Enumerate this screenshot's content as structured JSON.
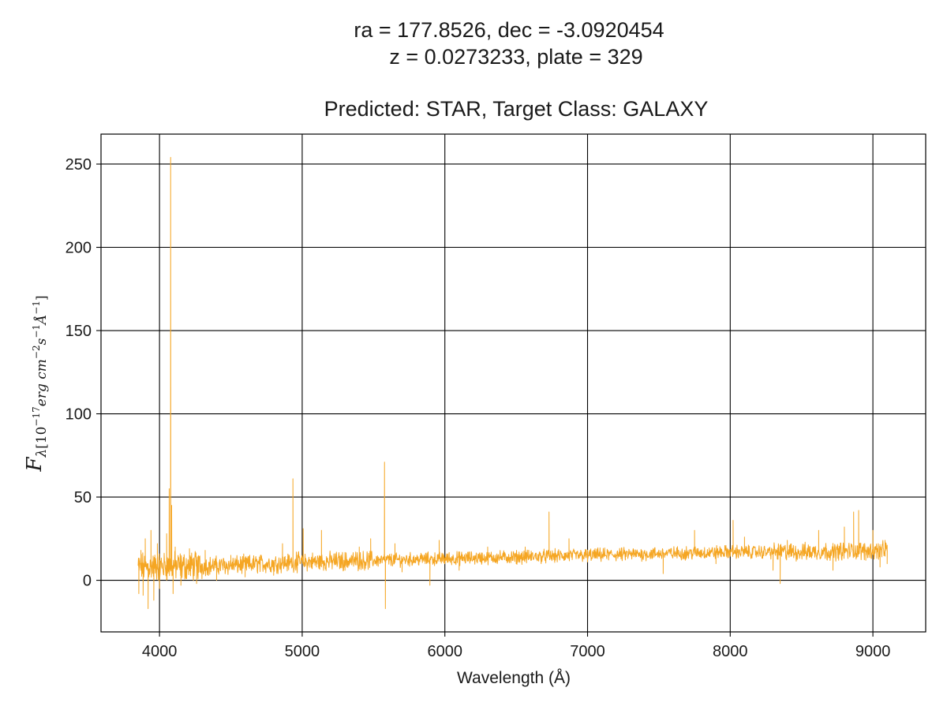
{
  "chart_data": {
    "type": "line",
    "title_lines": [
      "ra = 177.8526, dec = -3.0920454",
      "z = 0.0273233, plate = 329"
    ],
    "subtitle": "Predicted: STAR, Target Class: GALAXY",
    "xlabel": "Wavelength (Å)",
    "ylabel": {
      "symbol": "F",
      "sub_lambda": "λ",
      "bracket_open": "[10",
      "exp_a": "−17",
      "unit_a": "erg cm",
      "exp_b": "−2",
      "unit_b": "s",
      "exp_c": "−1",
      "unit_c": "Å",
      "exp_d": "−1",
      "bracket_close": "]"
    },
    "xlim": [
      3590,
      9370
    ],
    "ylim": [
      -31,
      268
    ],
    "xticks": [
      4000,
      5000,
      6000,
      7000,
      8000,
      9000
    ],
    "yticks": [
      0,
      50,
      100,
      150,
      200,
      250
    ],
    "grid": true,
    "line_color": "#f5a623",
    "axis_color": "#000000",
    "series": [
      {
        "x_start": 3850,
        "x_end": 9100,
        "continuum": [
          [
            3850,
            8
          ],
          [
            4500,
            9
          ],
          [
            5000,
            11
          ],
          [
            5500,
            12
          ],
          [
            6000,
            13
          ],
          [
            6500,
            14
          ],
          [
            7000,
            15
          ],
          [
            7500,
            16
          ],
          [
            8000,
            17
          ],
          [
            8500,
            17
          ],
          [
            9100,
            18
          ]
        ],
        "peaks": [
          [
            3855,
            -8
          ],
          [
            3870,
            18
          ],
          [
            3885,
            -9
          ],
          [
            3900,
            25
          ],
          [
            3920,
            -17
          ],
          [
            3940,
            30
          ],
          [
            3960,
            -12
          ],
          [
            3985,
            22
          ],
          [
            4000,
            -5
          ],
          [
            4050,
            28
          ],
          [
            4068,
            55
          ],
          [
            4078,
            254
          ],
          [
            4085,
            45
          ],
          [
            4095,
            -8
          ],
          [
            4110,
            20
          ],
          [
            4150,
            -3
          ],
          [
            4210,
            19
          ],
          [
            4260,
            -2
          ],
          [
            4320,
            18
          ],
          [
            4400,
            0
          ],
          [
            4500,
            15
          ],
          [
            4600,
            2
          ],
          [
            4700,
            14
          ],
          [
            4800,
            3
          ],
          [
            4862,
            22
          ],
          [
            4935,
            61
          ],
          [
            4959,
            17
          ],
          [
            5007,
            31
          ],
          [
            5100,
            8
          ],
          [
            5135,
            30
          ],
          [
            5300,
            6
          ],
          [
            5400,
            20
          ],
          [
            5480,
            25
          ],
          [
            5577,
            71
          ],
          [
            5583,
            -17
          ],
          [
            5650,
            22
          ],
          [
            5700,
            5
          ],
          [
            5895,
            -3
          ],
          [
            5960,
            24
          ],
          [
            6100,
            6
          ],
          [
            6300,
            20
          ],
          [
            6500,
            10
          ],
          [
            6563,
            20
          ],
          [
            6730,
            41
          ],
          [
            6870,
            25
          ],
          [
            7000,
            11
          ],
          [
            7250,
            17
          ],
          [
            7530,
            4
          ],
          [
            7750,
            30
          ],
          [
            7900,
            10
          ],
          [
            8020,
            36
          ],
          [
            8100,
            26
          ],
          [
            8300,
            6
          ],
          [
            8350,
            -2
          ],
          [
            8400,
            24
          ],
          [
            8620,
            30
          ],
          [
            8720,
            6
          ],
          [
            8800,
            32
          ],
          [
            8865,
            41
          ],
          [
            8900,
            42
          ],
          [
            8950,
            12
          ],
          [
            9000,
            30
          ],
          [
            9050,
            8
          ],
          [
            9085,
            24
          ],
          [
            9100,
            10
          ]
        ]
      }
    ]
  }
}
